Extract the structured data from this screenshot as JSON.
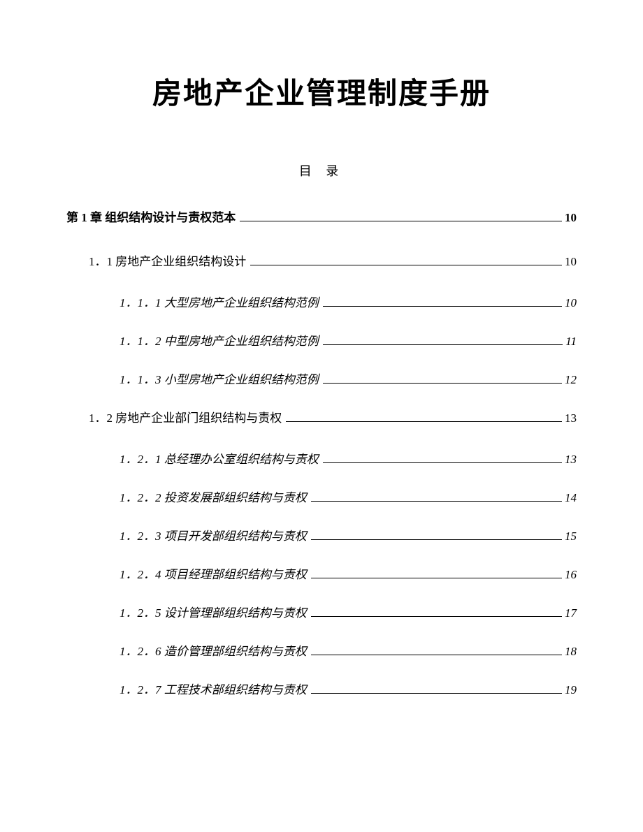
{
  "document": {
    "title": "房地产企业管理制度手册",
    "toc_heading": "目  录",
    "text_color": "#000000",
    "background_color": "#ffffff",
    "title_fontsize": 42,
    "body_fontsize": 17,
    "entries": [
      {
        "level": 1,
        "text": "第 1 章  组织结构设计与责权范本",
        "page": "10"
      },
      {
        "level": 2,
        "text": "1．1  房地产企业组织结构设计",
        "page": "10"
      },
      {
        "level": 3,
        "text": "1．1．1  大型房地产企业组织结构范例",
        "page": "10"
      },
      {
        "level": 3,
        "text": "1．1．2  中型房地产企业组织结构范例",
        "page": "11"
      },
      {
        "level": 3,
        "text": "1．1．3  小型房地产企业组织结构范例",
        "page": "12"
      },
      {
        "level": 2,
        "text": "1．2  房地产企业部门组织结构与责权",
        "page": "13"
      },
      {
        "level": 3,
        "text": "1．2．1  总经理办公室组织结构与责权",
        "page": "13"
      },
      {
        "level": 3,
        "text": "1．2．2  投资发展部组织结构与责权",
        "page": "14"
      },
      {
        "level": 3,
        "text": "1．2．3  项目开发部组织结构与责权",
        "page": "15"
      },
      {
        "level": 3,
        "text": "1．2．4  项目经理部组织结构与责权",
        "page": "16"
      },
      {
        "level": 3,
        "text": "1．2．5  设计管理部组织结构与责权",
        "page": "17"
      },
      {
        "level": 3,
        "text": "1．2．6  造价管理部组织结构与责权",
        "page": "18"
      },
      {
        "level": 3,
        "text": "1．2．7  工程技术部组织结构与责权",
        "page": "19"
      }
    ]
  }
}
